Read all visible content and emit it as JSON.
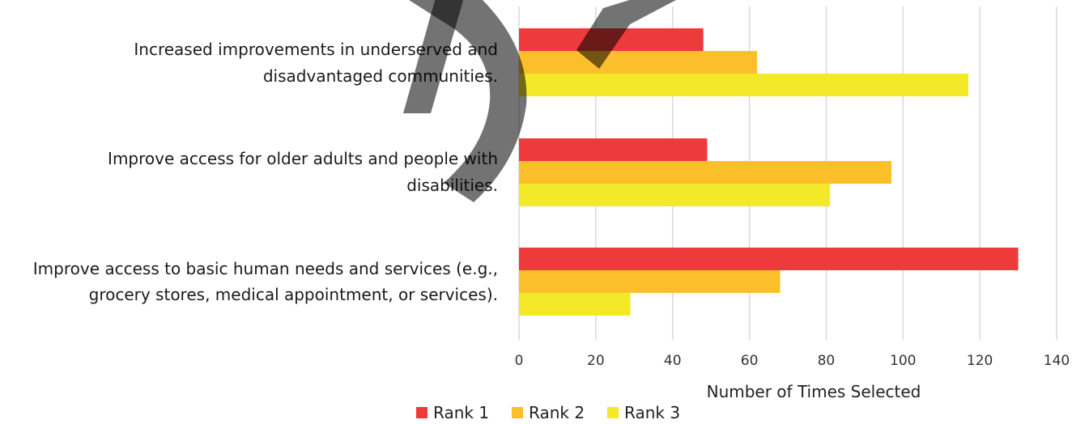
{
  "chart_data": {
    "type": "bar",
    "orientation": "horizontal",
    "categories": [
      [
        "Increased improvements in underserved and",
        "disadvantaged communities."
      ],
      [
        "Improve access for older adults and people with",
        "disabilities."
      ],
      [
        "Improve access to basic human needs and services (e.g.,",
        "grocery stores, medical appointment, or services)."
      ]
    ],
    "series": [
      {
        "name": "Rank 1",
        "color": "#ee3a3a",
        "values": [
          48,
          49,
          130
        ]
      },
      {
        "name": "Rank 2",
        "color": "#fbbf2b",
        "values": [
          62,
          97,
          68
        ]
      },
      {
        "name": "Rank 3",
        "color": "#f4e928",
        "values": [
          117,
          81,
          29
        ]
      }
    ],
    "xlabel": "Number of Times Selected",
    "xlim": [
      0,
      140
    ],
    "xticks": [
      0,
      20,
      40,
      60,
      80,
      100,
      120,
      140
    ],
    "grid": "vertical",
    "legend": "bottom"
  }
}
